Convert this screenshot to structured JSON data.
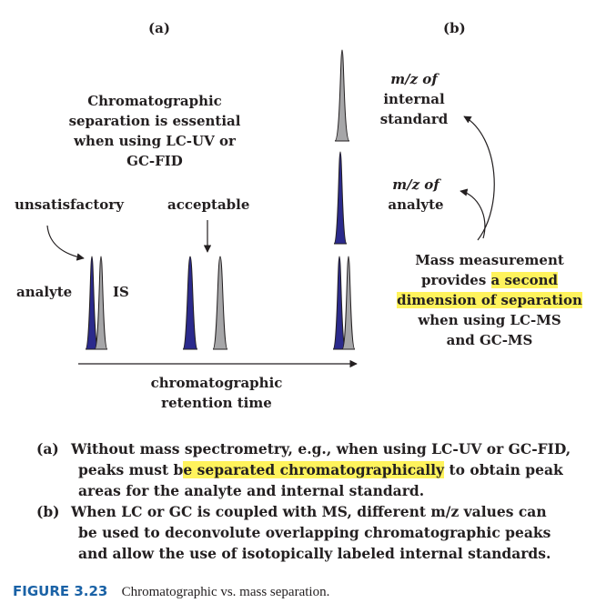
{
  "panel_a": {
    "label": "(a)",
    "statement": [
      "Chromatographic",
      "separation is essential",
      "when using LC-UV or",
      "GC-FID"
    ],
    "unsatisfactory": "unsatisfactory",
    "acceptable": "acceptable",
    "analyte": "analyte",
    "is": "IS",
    "axis_label": [
      "chromatographic",
      "retention time"
    ]
  },
  "panel_b": {
    "label": "(b)",
    "mz_internal": [
      "m/z of",
      "internal",
      "standard"
    ],
    "mz_analyte": [
      "m/z of",
      "analyte"
    ],
    "mass_text": {
      "line1": "Mass measurement",
      "line2_plain": "provides ",
      "line2_hl": "a second",
      "line3_hl": "dimension of separation",
      "line4": "when using LC-MS",
      "line5": "and GC-MS"
    }
  },
  "notes": {
    "a_label": "(a)",
    "a_line1": "Without mass spectrometry, e.g., when using LC-UV or GC-FID,",
    "a_line2_pre": "peaks must b",
    "a_line2_hl": "e separated chromatographically",
    "a_line2_post": " to obtain peak",
    "a_line3": "areas for the analyte and internal standard.",
    "b_label": "(b)",
    "b_line1": "When LC or GC is coupled with MS, different m/z values can",
    "b_line2": "be used to deconvolute overlapping chromatographic peaks",
    "b_line3": "and allow the use of isotopically labeled internal standards."
  },
  "caption": {
    "label": "FIGURE 3.23",
    "text": "Chromatographic vs. mass separation."
  },
  "colors": {
    "analyte_peak": "#2b2a8c",
    "is_peak": "#a6a6a8",
    "highlight": "#fff35c",
    "caption_label": "#1a62a6"
  }
}
